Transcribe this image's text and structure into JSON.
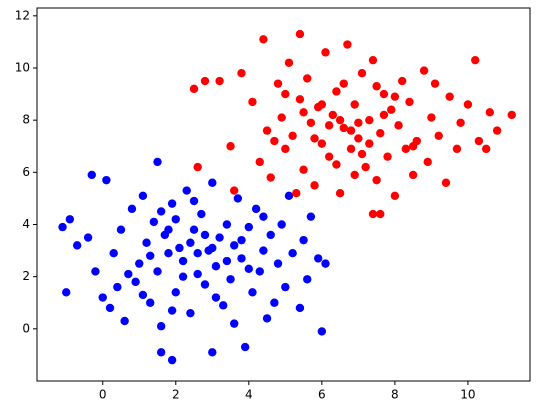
{
  "chart_data": {
    "type": "scatter",
    "xlim": [
      -1.8,
      11.7
    ],
    "ylim": [
      -2.0,
      12.3
    ],
    "xticks": [
      0,
      2,
      4,
      6,
      8,
      10
    ],
    "yticks": [
      0,
      2,
      4,
      6,
      8,
      10,
      12
    ],
    "series": [
      {
        "color": "#0000ff",
        "x": [
          -1.1,
          -0.9,
          -1.0,
          -0.3,
          0.1,
          1.5,
          6.0,
          1.9,
          1.6,
          5.7,
          5.1,
          3.0,
          -0.7,
          -0.4,
          -0.2,
          0.0,
          0.2,
          0.3,
          0.5,
          0.6,
          0.8,
          0.9,
          1.0,
          1.1,
          1.2,
          1.3,
          1.4,
          1.5,
          1.6,
          1.7,
          1.8,
          1.9,
          2.0,
          2.1,
          2.2,
          2.3,
          2.4,
          2.5,
          2.6,
          2.7,
          2.8,
          2.9,
          3.0,
          3.1,
          3.2,
          3.3,
          3.4,
          3.5,
          3.6,
          3.7,
          3.8,
          3.9,
          4.0,
          4.1,
          4.2,
          4.3,
          4.4,
          4.5,
          4.6,
          4.7,
          4.8,
          4.9,
          5.0,
          5.2,
          5.4,
          5.5,
          5.6,
          5.9,
          6.1,
          1.8,
          2.4,
          2.6,
          3.0,
          2.2,
          1.3,
          3.4,
          2.8,
          1.6,
          3.8,
          2.0,
          0.7,
          4.0,
          3.1,
          1.9,
          2.5,
          0.4,
          4.4,
          3.6,
          1.1
        ],
        "values": [
          3.9,
          4.2,
          1.4,
          5.9,
          5.7,
          6.4,
          -0.1,
          -1.2,
          -0.9,
          4.3,
          5.1,
          -0.9,
          3.2,
          3.5,
          2.2,
          1.2,
          0.8,
          2.9,
          3.8,
          0.3,
          4.6,
          1.8,
          2.5,
          5.1,
          3.3,
          1.0,
          4.1,
          2.2,
          0.1,
          3.6,
          2.9,
          4.8,
          1.4,
          3.1,
          2.6,
          5.3,
          0.6,
          3.8,
          2.1,
          4.4,
          1.7,
          3.0,
          5.6,
          2.4,
          3.5,
          0.9,
          4.0,
          1.9,
          3.2,
          5.0,
          2.7,
          -0.7,
          3.9,
          1.4,
          4.6,
          2.2,
          3.0,
          0.4,
          3.6,
          1.0,
          2.5,
          4.0,
          1.6,
          2.9,
          0.8,
          3.4,
          1.9,
          2.7,
          2.5,
          3.8,
          3.3,
          2.9,
          3.1,
          2.0,
          2.8,
          2.6,
          3.6,
          4.5,
          3.4,
          4.2,
          2.1,
          2.3,
          1.2,
          0.7,
          4.9,
          1.6,
          4.3,
          0.2,
          1.3
        ]
      },
      {
        "color": "#ff0000",
        "x": [
          2.6,
          3.6,
          2.5,
          2.8,
          3.2,
          4.4,
          5.4,
          11.2,
          10.2,
          7.6,
          7.4,
          10.5,
          5.3,
          3.8,
          4.1,
          4.3,
          4.5,
          4.6,
          4.8,
          4.9,
          5.0,
          5.1,
          5.2,
          5.4,
          5.5,
          5.6,
          5.7,
          5.8,
          5.9,
          6.0,
          6.1,
          6.2,
          6.3,
          6.4,
          6.5,
          6.6,
          6.7,
          6.8,
          6.9,
          7.0,
          7.1,
          7.2,
          7.3,
          7.4,
          7.5,
          7.6,
          7.7,
          7.8,
          7.9,
          8.0,
          8.1,
          8.2,
          8.3,
          8.4,
          8.5,
          8.6,
          8.8,
          8.9,
          9.0,
          9.2,
          9.4,
          9.5,
          9.7,
          9.8,
          10.0,
          10.3,
          10.6,
          10.8,
          6.5,
          7.0,
          6.8,
          6.2,
          7.3,
          6.0,
          7.7,
          5.8,
          6.6,
          7.1,
          8.0,
          5.5,
          6.9,
          4.7,
          8.5,
          6.4,
          7.5,
          9.1,
          3.5,
          5.0
        ],
        "values": [
          6.2,
          5.3,
          9.2,
          9.5,
          9.5,
          11.1,
          11.3,
          8.2,
          10.3,
          4.4,
          4.4,
          6.9,
          5.2,
          9.8,
          8.7,
          6.4,
          7.6,
          5.8,
          9.4,
          8.1,
          6.9,
          10.2,
          7.4,
          8.8,
          6.1,
          9.6,
          7.9,
          5.5,
          8.5,
          7.1,
          10.6,
          6.6,
          8.2,
          9.1,
          5.2,
          7.7,
          10.9,
          6.9,
          8.6,
          7.3,
          9.8,
          6.2,
          8.0,
          10.3,
          5.7,
          7.5,
          9.0,
          6.6,
          8.4,
          5.1,
          7.8,
          9.5,
          6.9,
          8.7,
          5.9,
          7.2,
          9.9,
          6.4,
          8.1,
          7.4,
          5.6,
          8.9,
          6.9,
          7.9,
          8.6,
          7.2,
          8.3,
          7.6,
          8.0,
          7.9,
          7.6,
          7.8,
          7.1,
          8.6,
          8.2,
          7.3,
          9.4,
          6.7,
          8.9,
          8.3,
          5.9,
          7.2,
          7.0,
          6.3,
          9.3,
          9.4,
          7.0,
          9.0
        ]
      }
    ]
  }
}
